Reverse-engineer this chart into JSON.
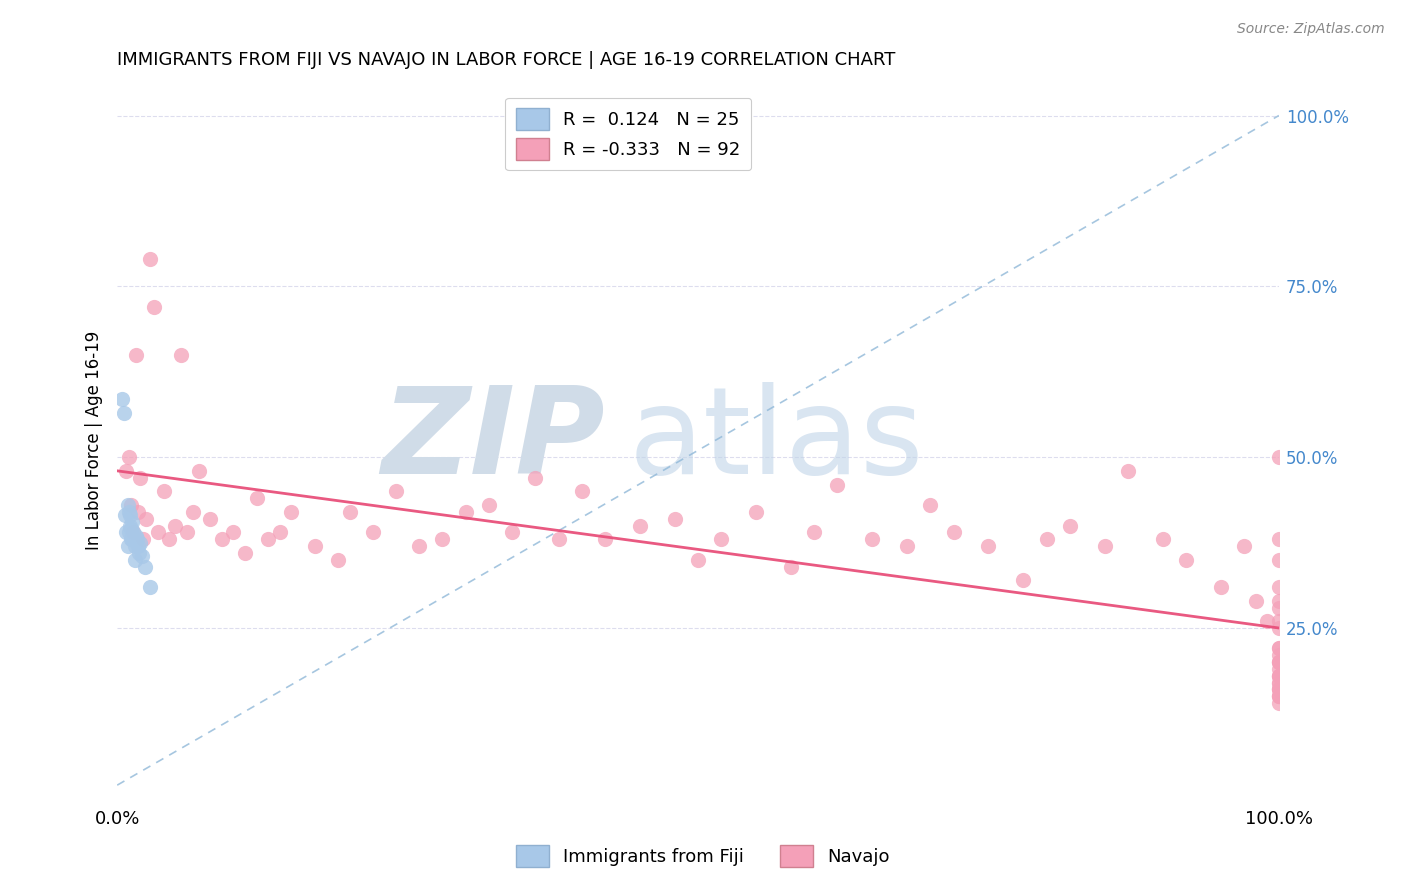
{
  "title": "IMMIGRANTS FROM FIJI VS NAVAJO IN LABOR FORCE | AGE 16-19 CORRELATION CHART",
  "source": "Source: ZipAtlas.com",
  "ylabel": "In Labor Force | Age 16-19",
  "xlim": [
    0.0,
    1.0
  ],
  "ylim": [
    0.0,
    1.05
  ],
  "fiji_R": 0.124,
  "fiji_N": 25,
  "navajo_R": -0.333,
  "navajo_N": 92,
  "fiji_color": "#a8c8e8",
  "navajo_color": "#f4a0b8",
  "fiji_line_color": "#90b8d8",
  "navajo_line_color": "#e8507a",
  "grid_color": "#ddddee",
  "right_tick_color": "#4488cc",
  "fiji_x": [
    0.004,
    0.006,
    0.007,
    0.008,
    0.009,
    0.009,
    0.01,
    0.01,
    0.011,
    0.011,
    0.012,
    0.012,
    0.013,
    0.013,
    0.014,
    0.015,
    0.015,
    0.016,
    0.017,
    0.018,
    0.019,
    0.02,
    0.021,
    0.024,
    0.028
  ],
  "fiji_y": [
    0.585,
    0.565,
    0.415,
    0.39,
    0.43,
    0.37,
    0.42,
    0.39,
    0.415,
    0.4,
    0.395,
    0.38,
    0.405,
    0.38,
    0.39,
    0.37,
    0.35,
    0.385,
    0.38,
    0.37,
    0.36,
    0.375,
    0.355,
    0.34,
    0.31
  ],
  "navajo_x": [
    0.008,
    0.01,
    0.012,
    0.014,
    0.016,
    0.018,
    0.02,
    0.022,
    0.025,
    0.028,
    0.032,
    0.035,
    0.04,
    0.045,
    0.05,
    0.055,
    0.06,
    0.065,
    0.07,
    0.08,
    0.09,
    0.1,
    0.11,
    0.12,
    0.13,
    0.14,
    0.15,
    0.17,
    0.19,
    0.2,
    0.22,
    0.24,
    0.26,
    0.28,
    0.3,
    0.32,
    0.34,
    0.36,
    0.38,
    0.4,
    0.42,
    0.45,
    0.48,
    0.5,
    0.52,
    0.55,
    0.58,
    0.6,
    0.62,
    0.65,
    0.68,
    0.7,
    0.72,
    0.75,
    0.78,
    0.8,
    0.82,
    0.85,
    0.87,
    0.9,
    0.92,
    0.95,
    0.97,
    0.98,
    0.99,
    1.0,
    1.0,
    1.0,
    1.0,
    1.0,
    1.0,
    1.0,
    1.0,
    1.0,
    1.0,
    1.0,
    1.0,
    1.0,
    1.0,
    1.0,
    1.0,
    1.0,
    1.0,
    1.0,
    1.0,
    1.0,
    1.0,
    1.0,
    1.0,
    1.0,
    1.0,
    1.0
  ],
  "navajo_y": [
    0.48,
    0.5,
    0.43,
    0.39,
    0.65,
    0.42,
    0.47,
    0.38,
    0.41,
    0.79,
    0.72,
    0.39,
    0.45,
    0.38,
    0.4,
    0.65,
    0.39,
    0.42,
    0.48,
    0.41,
    0.38,
    0.39,
    0.36,
    0.44,
    0.38,
    0.39,
    0.42,
    0.37,
    0.35,
    0.42,
    0.39,
    0.45,
    0.37,
    0.38,
    0.42,
    0.43,
    0.39,
    0.47,
    0.38,
    0.45,
    0.38,
    0.4,
    0.41,
    0.35,
    0.38,
    0.42,
    0.34,
    0.39,
    0.46,
    0.38,
    0.37,
    0.43,
    0.39,
    0.37,
    0.32,
    0.38,
    0.4,
    0.37,
    0.48,
    0.38,
    0.35,
    0.31,
    0.37,
    0.29,
    0.26,
    0.5,
    0.38,
    0.35,
    0.29,
    0.26,
    0.31,
    0.25,
    0.22,
    0.28,
    0.2,
    0.18,
    0.16,
    0.21,
    0.19,
    0.15,
    0.18,
    0.2,
    0.17,
    0.16,
    0.22,
    0.18,
    0.15,
    0.2,
    0.17,
    0.14,
    0.16,
    0.15
  ]
}
